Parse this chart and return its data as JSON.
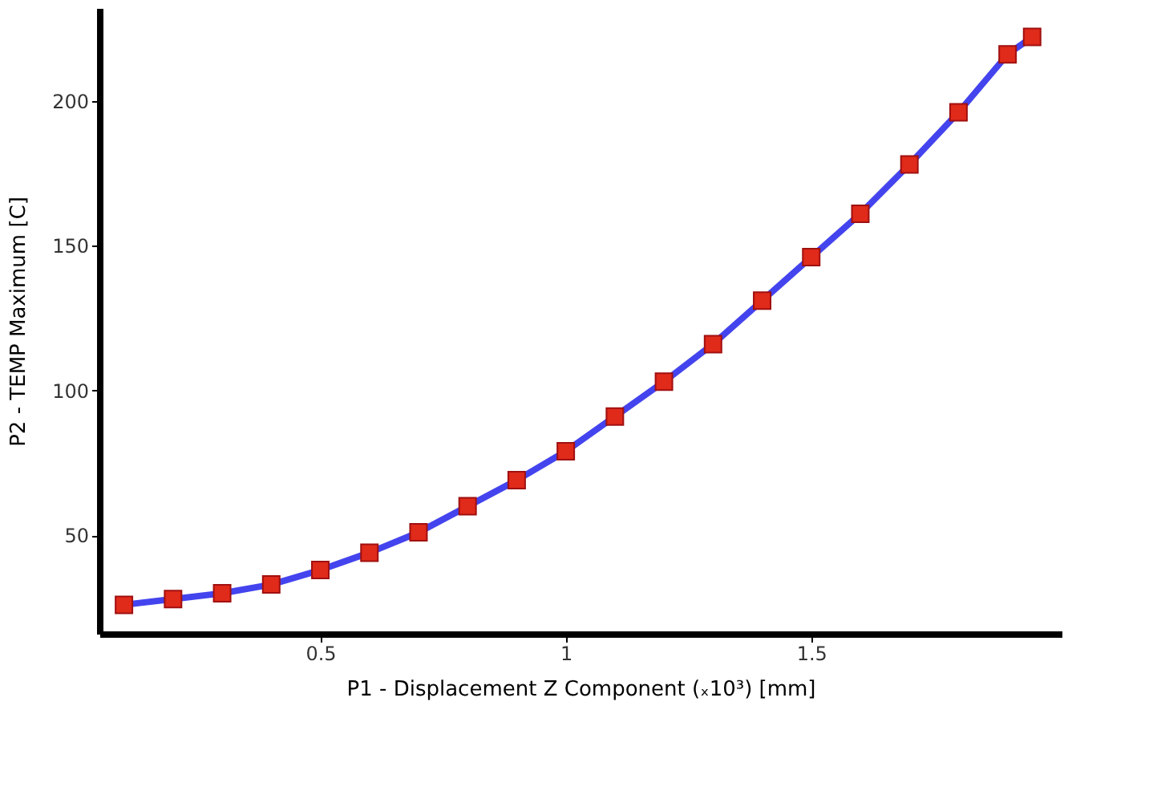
{
  "chart_data": {
    "type": "line",
    "xlabel": "P1 - Displacement Z Component  (ₓ10³)  [mm]",
    "ylabel": "P2 - TEMP Maximum  [C]",
    "x": [
      0.1,
      0.2,
      0.3,
      0.4,
      0.5,
      0.6,
      0.7,
      0.8,
      0.9,
      1.0,
      1.1,
      1.2,
      1.3,
      1.4,
      1.5,
      1.6,
      1.7,
      1.8,
      1.9,
      1.95
    ],
    "series": [
      {
        "color": "#4444ee",
        "values": [
          26,
          28,
          30,
          33,
          38,
          44,
          51,
          60,
          69,
          79,
          91,
          103,
          116,
          131,
          146,
          161,
          178,
          196,
          216,
          222
        ]
      }
    ],
    "marker": "square",
    "line_style": "solid",
    "grid": false,
    "xlim": [
      0.05,
      2.01
    ],
    "ylim": [
      16,
      232
    ],
    "xticks": [
      0.5,
      1,
      1.5
    ],
    "yticks": [
      50,
      100,
      150,
      200
    ]
  }
}
